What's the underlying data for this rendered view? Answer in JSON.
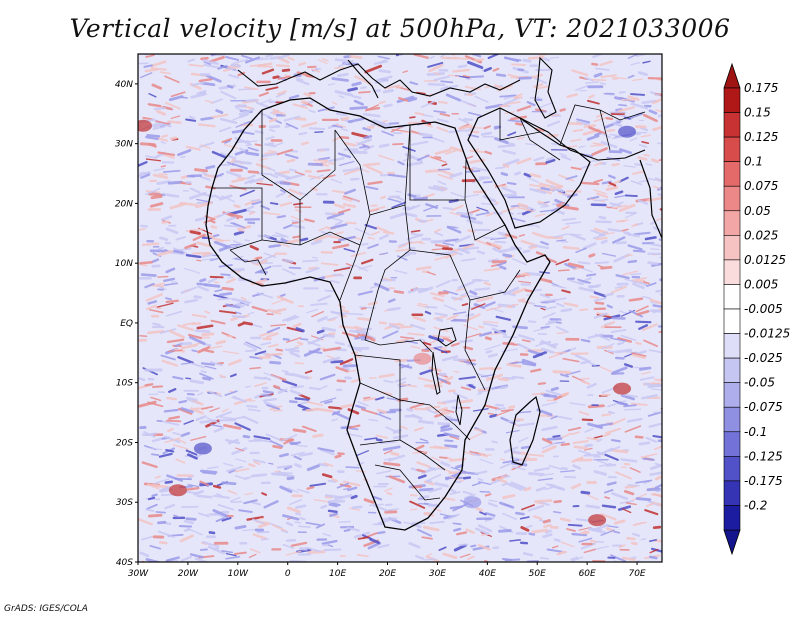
{
  "title": "Vertical velocity [m/s] at 500hPa, VT: 2021033006",
  "credit": "GrADS: IGES/COLA",
  "map": {
    "lon_range": [
      -30,
      75
    ],
    "lat_range": [
      -40,
      45
    ],
    "lat_ticks": [
      "40N",
      "30N",
      "20N",
      "10N",
      "EQ",
      "10S",
      "20S",
      "30S",
      "40S"
    ],
    "lon_ticks": [
      "30W",
      "20W",
      "10W",
      "0",
      "10E",
      "20E",
      "30E",
      "40E",
      "50E",
      "60E",
      "70E"
    ],
    "field_colors": {
      "weak_neg": "#c8c8f4",
      "mid_neg": "#9b9bea",
      "strong_neg": "#5050c8",
      "weak_pos": "#f2c4c4",
      "mid_pos": "#e88a8a",
      "strong_pos": "#c03030"
    }
  },
  "colorbar": {
    "labels": [
      "0.175",
      "0.15",
      "0.125",
      "0.1",
      "0.075",
      "0.05",
      "0.025",
      "0.0125",
      "0.005",
      "-0.005",
      "-0.0125",
      "-0.025",
      "-0.05",
      "-0.075",
      "-0.1",
      "-0.125",
      "-0.175",
      "-0.2"
    ],
    "colors": [
      "#b01818",
      "#c83232",
      "#d84c4c",
      "#e46a6a",
      "#ec8888",
      "#f2a6a6",
      "#f6c2c2",
      "#fadcdc",
      "#ffffff",
      "#ffffff",
      "#dedef8",
      "#c6c6f2",
      "#aeaeec",
      "#9090e2",
      "#7272d8",
      "#5252c8",
      "#3434b4",
      "#1c1ca0"
    ],
    "top_arrow_color": "#a01414",
    "bottom_arrow_color": "#14148c"
  }
}
